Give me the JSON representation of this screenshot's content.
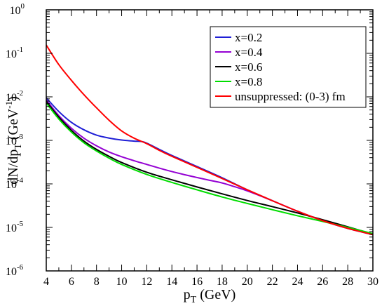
{
  "chart_data": {
    "type": "line",
    "title": "",
    "xlabel": {
      "main": "p",
      "sub": "T",
      "rest": " (GeV)"
    },
    "ylabel": {
      "main": "dN/dp",
      "sub": "T",
      "rest1": " (GeV",
      "sup": "-1",
      "rest2": ")"
    },
    "xlim": [
      4,
      30
    ],
    "ylim": [
      1e-06,
      1
    ],
    "yscale": "log",
    "grid": false,
    "legend_position": "top-right",
    "xticks": [
      {
        "value": 4,
        "label": "4"
      },
      {
        "value": 6,
        "label": "6"
      },
      {
        "value": 8,
        "label": "8"
      },
      {
        "value": 10,
        "label": "10"
      },
      {
        "value": 12,
        "label": "12"
      },
      {
        "value": 14,
        "label": "14"
      },
      {
        "value": 16,
        "label": "16"
      },
      {
        "value": 18,
        "label": "18"
      },
      {
        "value": 20,
        "label": "20"
      },
      {
        "value": 22,
        "label": "22"
      },
      {
        "value": 24,
        "label": "24"
      },
      {
        "value": 26,
        "label": "26"
      },
      {
        "value": 28,
        "label": "28"
      },
      {
        "value": 30,
        "label": "30"
      }
    ],
    "yticks": [
      {
        "value": 1e-06,
        "base": "10",
        "exp": "-6"
      },
      {
        "value": 1e-05,
        "base": "10",
        "exp": "-5"
      },
      {
        "value": 0.0001,
        "base": "10",
        "exp": "-4"
      },
      {
        "value": 0.001,
        "base": "10",
        "exp": "-3"
      },
      {
        "value": 0.01,
        "base": "10",
        "exp": "-2"
      },
      {
        "value": 0.1,
        "base": "10",
        "exp": "-1"
      },
      {
        "value": 1,
        "base": "10",
        "exp": "0"
      }
    ],
    "series": [
      {
        "name": "x=0.2",
        "color": "#1f1fd6",
        "x": [
          4,
          5,
          6,
          7,
          8,
          9,
          10,
          11,
          11.8,
          13,
          14,
          16,
          18,
          20,
          22,
          24,
          26,
          28,
          30
        ],
        "y": [
          0.0095,
          0.0046,
          0.0026,
          0.00175,
          0.00132,
          0.00113,
          0.00102,
          0.00096,
          0.00091,
          0.00062,
          0.00045,
          0.00025,
          0.000138,
          7.3e-05,
          4.1e-05,
          2.35e-05,
          1.43e-05,
          9.5e-06,
          6.8e-06
        ]
      },
      {
        "name": "x=0.4",
        "color": "#9400d3",
        "x": [
          4,
          5,
          6,
          7,
          8,
          9,
          10,
          11,
          12,
          13,
          14,
          15,
          16,
          17,
          18,
          19,
          20,
          22,
          24,
          26,
          28,
          30
        ],
        "y": [
          0.0085,
          0.0037,
          0.0019,
          0.00112,
          0.00075,
          0.00054,
          0.00042,
          0.00034,
          0.00028,
          0.00023,
          0.000192,
          0.000163,
          0.00014,
          0.000121,
          0.000105,
          8.6e-05,
          6.9e-05,
          4.1e-05,
          2.35e-05,
          1.43e-05,
          9.5e-06,
          6.8e-06
        ]
      },
      {
        "name": "x=0.6",
        "color": "#000000",
        "x": [
          4,
          5,
          6,
          7,
          8,
          9,
          10,
          12,
          14,
          16,
          18,
          20,
          22,
          24,
          25,
          26,
          28,
          30
        ],
        "y": [
          0.0078,
          0.0034,
          0.0017,
          0.00096,
          0.00062,
          0.00043,
          0.00031,
          0.000185,
          0.000124,
          8.5e-05,
          5.9e-05,
          4.15e-05,
          3e-05,
          2.15e-05,
          1.8e-05,
          1.5e-05,
          1.03e-05,
          7e-06
        ]
      },
      {
        "name": "x=0.8",
        "color": "#00dd00",
        "x": [
          4,
          5,
          6,
          7,
          8,
          9,
          10,
          12,
          14,
          16,
          18,
          20,
          22,
          24,
          26,
          28,
          30
        ],
        "y": [
          0.0072,
          0.0031,
          0.00155,
          0.00088,
          0.00057,
          0.00039,
          0.00028,
          0.000165,
          0.000108,
          7.3e-05,
          5e-05,
          3.55e-05,
          2.55e-05,
          1.85e-05,
          1.37e-05,
          1e-05,
          7.2e-06
        ]
      },
      {
        "name": "unsuppressed: (0-3) fm",
        "color": "#ff0000",
        "x": [
          4,
          5,
          6,
          7,
          8,
          9,
          10,
          11,
          12,
          13,
          14,
          16,
          18,
          20,
          22,
          24,
          26,
          28,
          30
        ],
        "y": [
          0.155,
          0.055,
          0.024,
          0.0112,
          0.0056,
          0.0029,
          0.00165,
          0.00112,
          0.00084,
          0.00059,
          0.00043,
          0.00024,
          0.000133,
          7.3e-05,
          4.1e-05,
          2.35e-05,
          1.43e-05,
          9.5e-06,
          6.8e-06
        ]
      }
    ]
  }
}
